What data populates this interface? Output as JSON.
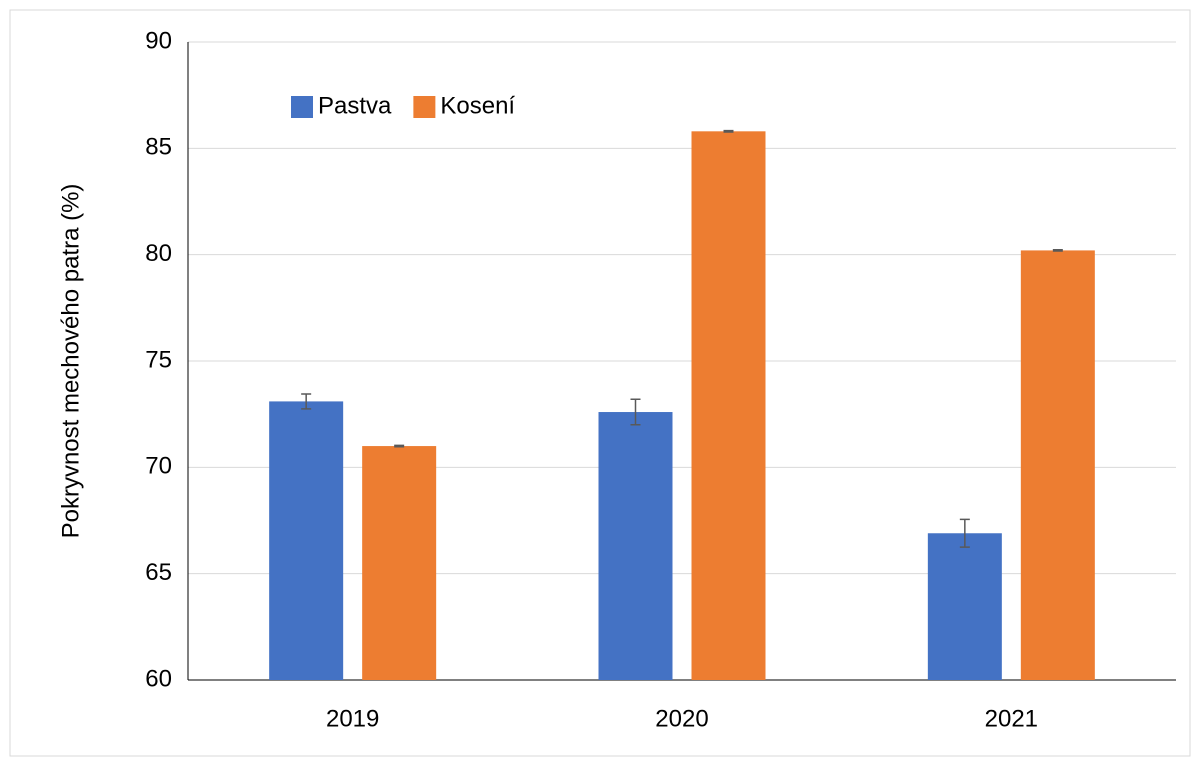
{
  "chart_data": {
    "type": "bar",
    "y_label": "Pokryvnost mechového patra (%)",
    "categories": [
      "2019",
      "2020",
      "2021"
    ],
    "series": [
      {
        "name": "Pastva",
        "color": "#4472c4",
        "values": [
          73.1,
          72.6,
          66.9
        ],
        "errors": [
          0.35,
          0.6,
          0.65
        ]
      },
      {
        "name": "Kosení",
        "color": "#ed7d31",
        "values": [
          71.0,
          85.8,
          80.2
        ],
        "errors": [
          0.03,
          0.03,
          0.03
        ]
      }
    ],
    "ylim": [
      60,
      90
    ],
    "yticks": [
      60,
      65,
      70,
      75,
      80,
      85,
      90
    ],
    "grid": true,
    "legend": "top-left"
  }
}
